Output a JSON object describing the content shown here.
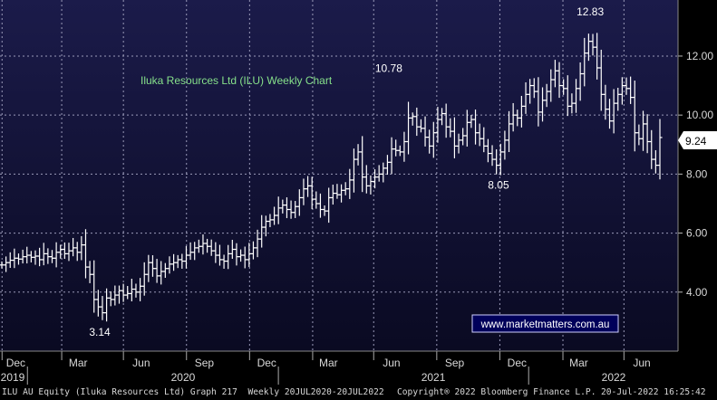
{
  "chart_data": {
    "type": "ohlc",
    "title": "Iluka Resources Ltd (ILU) Weekly Chart",
    "ylim": [
      2.0,
      13.9
    ],
    "yticks": [
      "4.00",
      "6.00",
      "8.00",
      "10.00",
      "12.00"
    ],
    "last_price": "9.24",
    "x_month_labels": [
      "Dec",
      "Mar",
      "Jun",
      "Sep",
      "Dec",
      "Mar",
      "Jun",
      "Sep",
      "Dec",
      "Mar",
      "Jun"
    ],
    "x_year_labels": [
      "2019",
      "2020",
      "2021",
      "2022"
    ],
    "annotations": [
      {
        "text": "3.14",
        "x": "2020-03-20",
        "y": 3.14
      },
      {
        "text": "10.78",
        "x": "2021-06-11",
        "y": 10.78
      },
      {
        "text": "8.05",
        "x": "2021-11-26",
        "y": 8.05
      },
      {
        "text": "12.83",
        "x": "2022-04-14",
        "y": 12.83
      }
    ],
    "watermark": "www.marketmatters.com.au",
    "series": [
      {
        "closes": [
          4.92,
          5.0,
          5.08,
          5.15,
          5.12,
          5.2,
          5.25,
          5.18,
          5.22,
          5.1,
          5.3,
          5.2,
          5.15,
          5.35,
          5.45,
          5.3,
          5.4,
          5.5,
          5.35,
          5.6,
          4.85,
          4.6,
          3.75,
          3.5,
          3.3,
          3.8,
          3.75,
          3.9,
          4.05,
          3.9,
          3.95,
          4.1,
          4.0,
          4.2,
          4.6,
          5.0,
          4.8,
          4.55,
          4.7,
          4.8,
          4.95,
          5.0,
          5.1,
          5.05,
          5.25,
          5.35,
          5.5,
          5.55,
          5.65,
          5.55,
          5.4,
          5.25,
          5.1,
          5.05,
          5.3,
          5.45,
          5.2,
          5.25,
          5.1,
          5.3,
          5.5,
          5.8,
          6.2,
          6.4,
          6.45,
          6.6,
          6.85,
          6.95,
          6.8,
          6.7,
          6.9,
          7.2,
          7.5,
          7.6,
          7.15,
          7.0,
          6.8,
          6.75,
          7.2,
          7.35,
          7.3,
          7.45,
          7.5,
          7.8,
          8.5,
          8.75,
          7.9,
          7.6,
          7.75,
          7.9,
          8.0,
          8.2,
          8.4,
          8.85,
          8.8,
          8.75,
          9.1,
          9.9,
          9.95,
          9.6,
          9.55,
          9.25,
          8.95,
          9.4,
          9.85,
          10.05,
          9.6,
          9.45,
          8.95,
          9.15,
          9.3,
          9.75,
          9.85,
          9.4,
          9.2,
          8.95,
          8.7,
          8.5,
          8.3,
          8.75,
          9.15,
          9.7,
          10.0,
          9.9,
          10.3,
          10.7,
          11.0,
          10.8,
          10.1,
          10.5,
          10.8,
          11.2,
          11.5,
          11.0,
          10.9,
          10.3,
          10.4,
          10.9,
          11.4,
          12.1,
          12.5,
          12.3,
          11.6,
          10.7,
          10.2,
          9.8,
          10.4,
          10.7,
          11.0,
          10.9,
          10.6,
          9.4,
          9.2,
          9.7,
          9.1,
          8.5,
          8.3,
          9.24
        ]
      }
    ]
  },
  "footer": {
    "left": "ILU AU Equity (Iluka Resources Ltd) Graph 217  Weekly 20JUL2020-20JUL2022",
    "center": "Copyright® 2022 Bloomberg Finance L.P.",
    "right": "20-Jul-2022 16:25:42"
  }
}
